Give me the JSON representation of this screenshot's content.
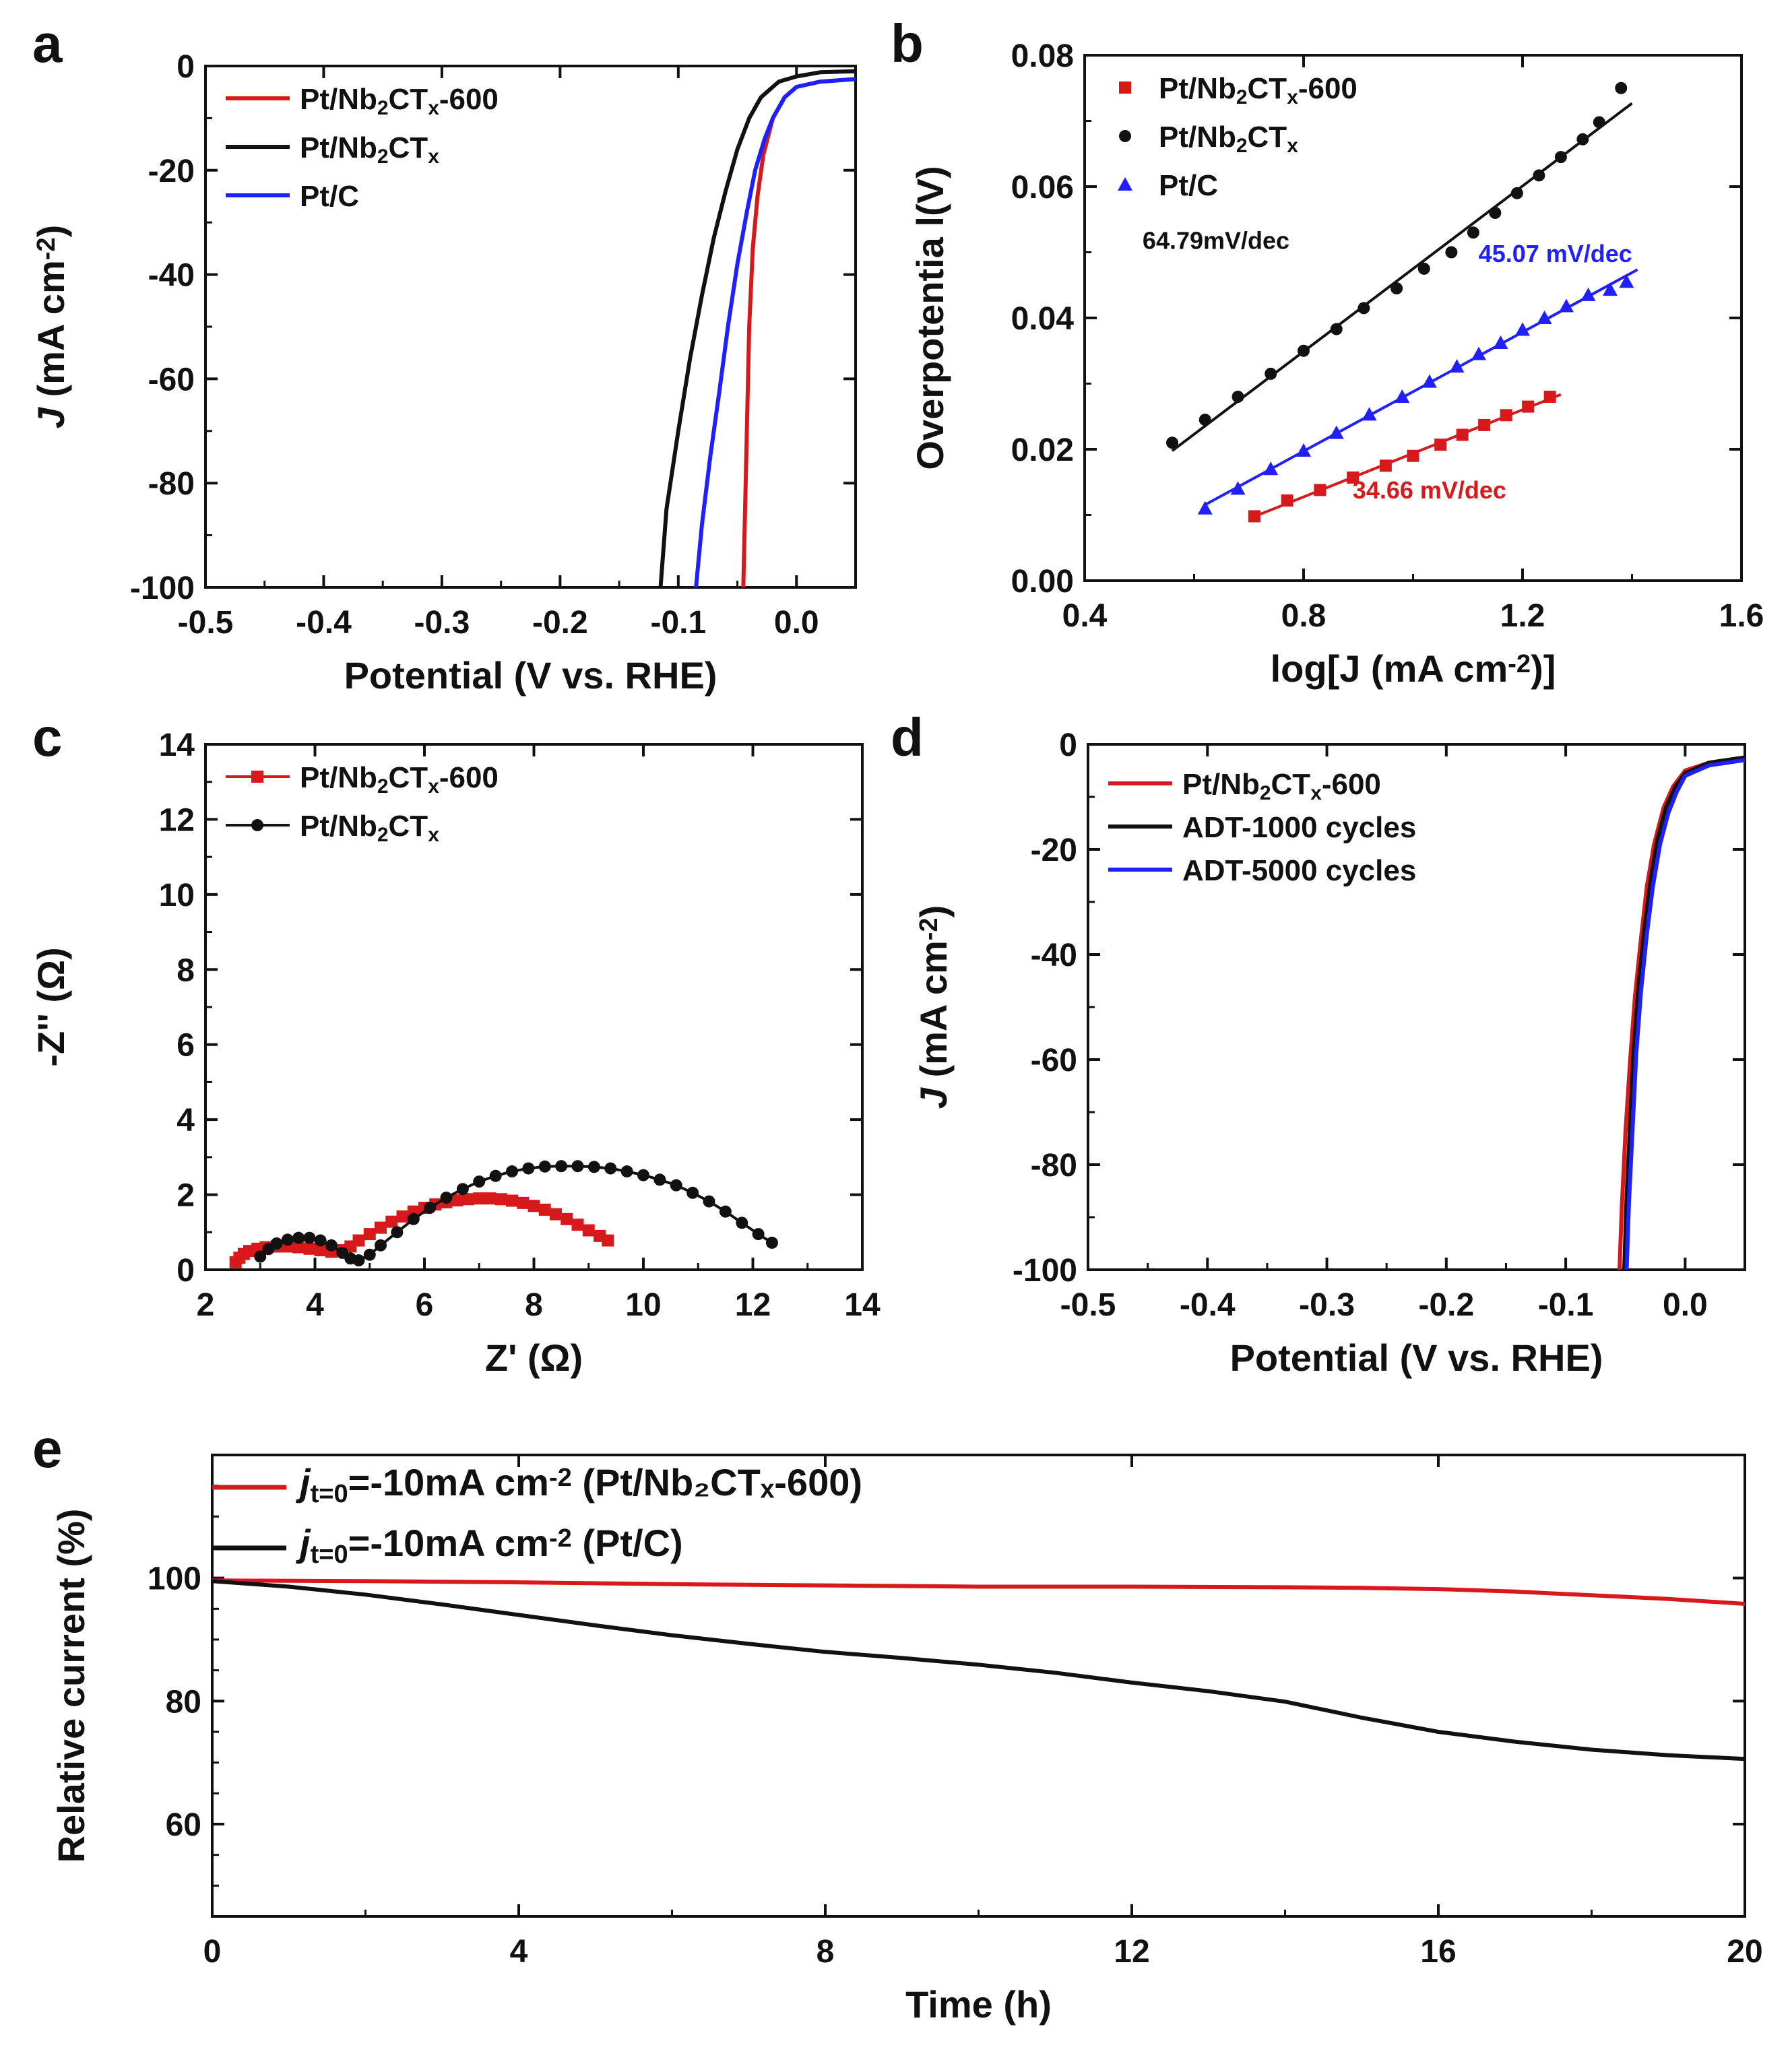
{
  "colors": {
    "red": "#d7191c",
    "black": "#111111",
    "blue": "#1f1fff"
  },
  "chart_data": [
    {
      "panel": "a",
      "type": "line",
      "xlabel": "Potential (V vs. RHE)",
      "ylabel": "J (mA cm⁻²)",
      "xlim": [
        -0.5,
        0.05
      ],
      "ylim": [
        -100,
        0
      ],
      "xticks": [
        -0.5,
        -0.4,
        -0.3,
        -0.2,
        -0.1,
        0.0
      ],
      "xtick_labels": [
        "-0.5",
        "-0.4",
        "-0.3",
        "-0.2",
        "-0.1",
        "0.0"
      ],
      "yticks": [
        0,
        -20,
        -40,
        -60,
        -80,
        -100
      ],
      "ytick_labels": [
        "0",
        "-20",
        "-40",
        "-60",
        "-80",
        "-100"
      ],
      "legend_position": "top-left",
      "series": [
        {
          "name": "Pt/Nb₂CTₓ-600",
          "color": "red",
          "x": [
            -0.045,
            -0.044,
            -0.042,
            -0.04,
            -0.037,
            -0.033,
            -0.028,
            -0.02,
            -0.01,
            0.0,
            0.02,
            0.05
          ],
          "y": [
            -100,
            -90,
            -70,
            -50,
            -35,
            -25,
            -17,
            -10,
            -6,
            -4,
            -3,
            -2.5
          ]
        },
        {
          "name": "Pt/Nb₂CTₓ",
          "color": "black",
          "x": [
            -0.115,
            -0.11,
            -0.1,
            -0.09,
            -0.08,
            -0.07,
            -0.06,
            -0.05,
            -0.04,
            -0.03,
            -0.015,
            0.0,
            0.02,
            0.05
          ],
          "y": [
            -100,
            -85,
            -70,
            -56,
            -44,
            -33,
            -24,
            -16,
            -10,
            -6,
            -3,
            -2,
            -1.2,
            -1
          ]
        },
        {
          "name": "Pt/C",
          "color": "blue",
          "x": [
            -0.085,
            -0.08,
            -0.073,
            -0.065,
            -0.058,
            -0.05,
            -0.042,
            -0.035,
            -0.027,
            -0.02,
            -0.01,
            0.0,
            0.02,
            0.05
          ],
          "y": [
            -100,
            -88,
            -75,
            -62,
            -50,
            -38,
            -28,
            -20,
            -14,
            -10,
            -6,
            -4,
            -3,
            -2.5
          ]
        }
      ]
    },
    {
      "panel": "b",
      "type": "scatter",
      "xlabel": "log[J (mA cm⁻²)]",
      "ylabel": "Overpotentia l(V)",
      "xlim": [
        0.4,
        1.6
      ],
      "ylim": [
        0.0,
        0.08
      ],
      "xticks": [
        0.4,
        0.8,
        1.2,
        1.6
      ],
      "xtick_labels": [
        "0.4",
        "0.8",
        "1.2",
        "1.6"
      ],
      "yticks": [
        0.0,
        0.02,
        0.04,
        0.06,
        0.08
      ],
      "ytick_labels": [
        "0.00",
        "0.02",
        "0.04",
        "0.06",
        "0.08"
      ],
      "legend_position": "top-left",
      "series": [
        {
          "name": "Pt/Nb₂CTₓ-600",
          "color": "red",
          "marker": "square",
          "annotation": "34.66 mV/dec",
          "annotation_xy": [
            1.03,
            0.0125
          ],
          "x": [
            0.71,
            0.77,
            0.83,
            0.89,
            0.95,
            1.0,
            1.05,
            1.09,
            1.13,
            1.17,
            1.21,
            1.25
          ],
          "y": [
            0.0098,
            0.0122,
            0.0138,
            0.0157,
            0.0175,
            0.019,
            0.0207,
            0.0222,
            0.0237,
            0.0252,
            0.0265,
            0.028
          ]
        },
        {
          "name": "Pt/Nb₂CTₓ",
          "color": "black",
          "marker": "circle",
          "annotation": "64.79mV/dec",
          "annotation_xy": [
            0.64,
            0.0505
          ],
          "x": [
            0.56,
            0.62,
            0.68,
            0.74,
            0.8,
            0.86,
            0.91,
            0.97,
            1.02,
            1.07,
            1.11,
            1.15,
            1.19,
            1.23,
            1.27,
            1.31,
            1.34,
            1.38
          ],
          "y": [
            0.021,
            0.0245,
            0.028,
            0.0315,
            0.035,
            0.0383,
            0.0415,
            0.0445,
            0.0475,
            0.05,
            0.053,
            0.056,
            0.059,
            0.0617,
            0.0645,
            0.0672,
            0.0698,
            0.075
          ]
        },
        {
          "name": "Pt/C",
          "color": "blue",
          "marker": "triangle",
          "annotation": "45.07 mV/dec",
          "annotation_xy": [
            1.26,
            0.0485
          ],
          "x": [
            0.62,
            0.68,
            0.74,
            0.8,
            0.86,
            0.92,
            0.98,
            1.03,
            1.08,
            1.12,
            1.16,
            1.2,
            1.24,
            1.28,
            1.32,
            1.36,
            1.39
          ],
          "y": [
            0.011,
            0.014,
            0.017,
            0.0198,
            0.0225,
            0.0253,
            0.028,
            0.0303,
            0.0326,
            0.0345,
            0.0362,
            0.0382,
            0.04,
            0.0418,
            0.0435,
            0.0443,
            0.0455
          ]
        }
      ]
    },
    {
      "panel": "c",
      "type": "scatter",
      "xlabel": "Z' (Ω)",
      "ylabel": "-Z'' (Ω)",
      "xlim": [
        2,
        14
      ],
      "ylim": [
        0,
        14
      ],
      "xticks": [
        2,
        4,
        6,
        8,
        10,
        12,
        14
      ],
      "xtick_labels": [
        "2",
        "4",
        "6",
        "8",
        "10",
        "12",
        "14"
      ],
      "yticks": [
        0,
        2,
        4,
        6,
        8,
        10,
        12,
        14
      ],
      "ytick_labels": [
        "0",
        "2",
        "4",
        "6",
        "8",
        "10",
        "12",
        "14"
      ],
      "legend_position": "top-left",
      "series": [
        {
          "name": "Pt/Nb₂CTₓ-600",
          "color": "red",
          "marker": "square",
          "x": [
            2.55,
            2.62,
            2.7,
            2.8,
            2.95,
            3.1,
            3.3,
            3.5,
            3.7,
            3.9,
            4.1,
            4.3,
            4.5,
            4.65,
            4.8,
            5.0,
            5.2,
            5.4,
            5.6,
            5.8,
            6.0,
            6.2,
            6.4,
            6.6,
            6.8,
            7.0,
            7.2,
            7.4,
            7.6,
            7.8,
            8.0,
            8.2,
            8.4,
            8.6,
            8.8,
            9.0,
            9.2,
            9.35
          ],
          "y": [
            0.2,
            0.32,
            0.42,
            0.5,
            0.56,
            0.6,
            0.62,
            0.62,
            0.6,
            0.56,
            0.52,
            0.48,
            0.52,
            0.62,
            0.78,
            0.95,
            1.12,
            1.28,
            1.42,
            1.55,
            1.65,
            1.74,
            1.8,
            1.85,
            1.88,
            1.9,
            1.9,
            1.88,
            1.84,
            1.78,
            1.7,
            1.6,
            1.48,
            1.35,
            1.2,
            1.05,
            0.9,
            0.78
          ]
        },
        {
          "name": "Pt/Nb₂CTₓ",
          "color": "black",
          "marker": "circle",
          "x": [
            3.0,
            3.15,
            3.3,
            3.5,
            3.7,
            3.9,
            4.1,
            4.3,
            4.5,
            4.65,
            4.8,
            5.0,
            5.2,
            5.5,
            5.8,
            6.1,
            6.4,
            6.7,
            7.0,
            7.3,
            7.6,
            7.9,
            8.2,
            8.5,
            8.8,
            9.1,
            9.4,
            9.7,
            10.0,
            10.3,
            10.6,
            10.9,
            11.2,
            11.5,
            11.8,
            12.1,
            12.35
          ],
          "y": [
            0.35,
            0.55,
            0.7,
            0.8,
            0.85,
            0.85,
            0.78,
            0.65,
            0.45,
            0.3,
            0.25,
            0.4,
            0.65,
            1.0,
            1.35,
            1.65,
            1.92,
            2.15,
            2.35,
            2.5,
            2.62,
            2.7,
            2.75,
            2.76,
            2.76,
            2.74,
            2.7,
            2.62,
            2.52,
            2.4,
            2.25,
            2.05,
            1.82,
            1.55,
            1.25,
            0.95,
            0.72
          ]
        }
      ]
    },
    {
      "panel": "d",
      "type": "line",
      "xlabel": "Potential (V vs. RHE)",
      "ylabel": "J (mA cm⁻²)",
      "xlim": [
        -0.5,
        0.05
      ],
      "ylim": [
        -100,
        0
      ],
      "xticks": [
        -0.5,
        -0.4,
        -0.3,
        -0.2,
        -0.1,
        0.0
      ],
      "xtick_labels": [
        "-0.5",
        "-0.4",
        "-0.3",
        "-0.2",
        "-0.1",
        "0.0"
      ],
      "yticks": [
        0,
        -20,
        -40,
        -60,
        -80,
        -100
      ],
      "ytick_labels": [
        "0",
        "-20",
        "-40",
        "-60",
        "-80",
        "-100"
      ],
      "legend_position": "top-left",
      "series": [
        {
          "name": "Pt/Nb₂CTₓ-600",
          "color": "red",
          "x": [
            -0.055,
            -0.053,
            -0.05,
            -0.046,
            -0.042,
            -0.037,
            -0.032,
            -0.026,
            -0.018,
            -0.01,
            0.0,
            0.02,
            0.05
          ],
          "y": [
            -100,
            -88,
            -74,
            -60,
            -48,
            -37,
            -27,
            -19,
            -12,
            -8,
            -5,
            -3.5,
            -2.5
          ]
        },
        {
          "name": "ADT-1000 cycles",
          "color": "black",
          "x": [
            -0.051,
            -0.049,
            -0.046,
            -0.043,
            -0.039,
            -0.034,
            -0.029,
            -0.023,
            -0.016,
            -0.008,
            0.0,
            0.02,
            0.05
          ],
          "y": [
            -100,
            -86,
            -72,
            -58,
            -46,
            -35,
            -26,
            -18,
            -12,
            -8,
            -5.5,
            -3.5,
            -2.5
          ]
        },
        {
          "name": "ADT-5000 cycles",
          "color": "blue",
          "x": [
            -0.049,
            -0.047,
            -0.044,
            -0.041,
            -0.037,
            -0.032,
            -0.027,
            -0.021,
            -0.014,
            -0.007,
            0.0,
            0.02,
            0.05
          ],
          "y": [
            -100,
            -87,
            -73,
            -59,
            -47,
            -36,
            -27,
            -19,
            -13,
            -9,
            -6,
            -4,
            -3
          ]
        }
      ]
    },
    {
      "panel": "e",
      "type": "line",
      "xlabel": "Time (h)",
      "ylabel": "Relative current (%)",
      "xlim": [
        0,
        20
      ],
      "ylim": [
        45,
        120
      ],
      "xticks": [
        0,
        4,
        8,
        12,
        16,
        20
      ],
      "xtick_labels": [
        "0",
        "4",
        "8",
        "12",
        "16",
        "20"
      ],
      "yticks": [
        60,
        80,
        100
      ],
      "ytick_labels": [
        "60",
        "80",
        "100"
      ],
      "legend_position": "top-left",
      "series": [
        {
          "name_main": "=-10mA cm",
          "name_sup": "-2",
          "name_tail": " (Pt/Nb₂CTₓ-600)",
          "color": "red",
          "x": [
            0,
            2,
            4,
            6,
            8,
            10,
            12,
            14,
            15,
            16,
            17,
            18,
            19,
            20
          ],
          "y": [
            99.6,
            99.5,
            99.3,
            99.0,
            98.8,
            98.6,
            98.6,
            98.5,
            98.4,
            98.2,
            97.8,
            97.2,
            96.6,
            95.8
          ]
        },
        {
          "name_main": "=-10mA cm",
          "name_sup": "-2",
          "name_tail": " (Pt/C)",
          "color": "black",
          "x": [
            0,
            1,
            2,
            3,
            4,
            5,
            6,
            7,
            8,
            9,
            10,
            11,
            12,
            13,
            14,
            15,
            16,
            17,
            18,
            19,
            20
          ],
          "y": [
            99.5,
            98.6,
            97.3,
            95.7,
            94.0,
            92.3,
            90.7,
            89.3,
            88.0,
            87.0,
            85.9,
            84.6,
            83.0,
            81.6,
            79.9,
            77.3,
            75.0,
            73.4,
            72.1,
            71.2,
            70.6
          ]
        }
      ]
    }
  ],
  "panel_letters": [
    "a",
    "b",
    "c",
    "d",
    "e"
  ],
  "legend_j_letter": "j",
  "legend_j_sub": "t=0"
}
